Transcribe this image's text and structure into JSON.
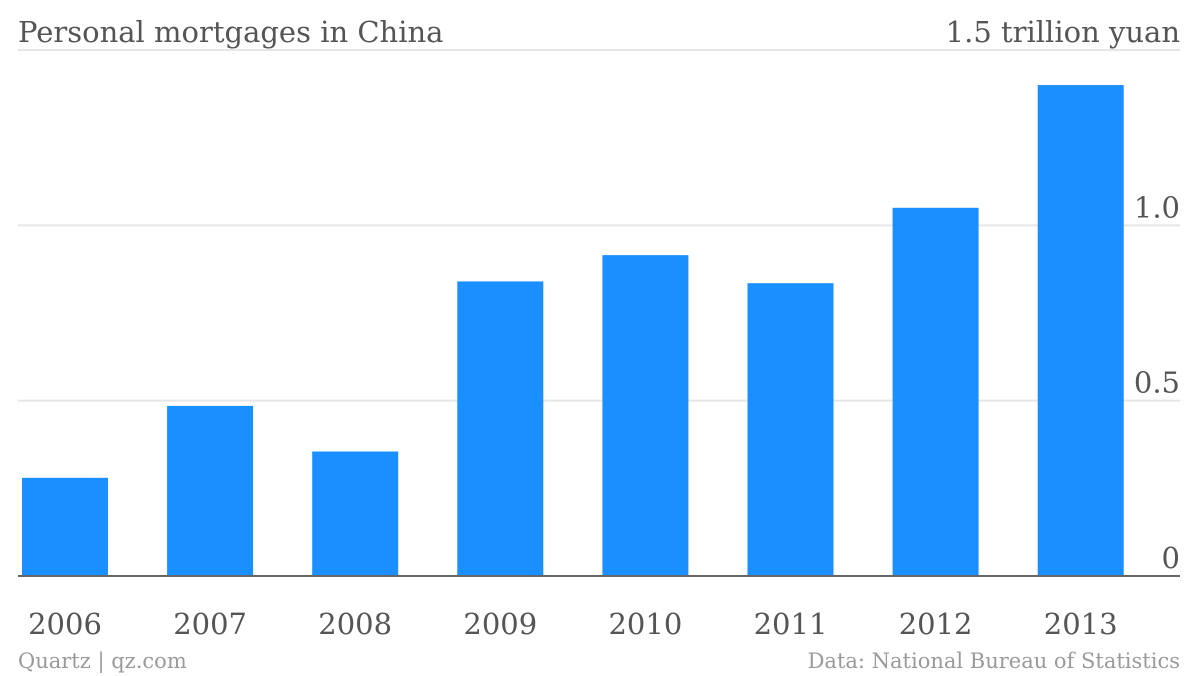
{
  "chart_data": {
    "type": "bar",
    "title": "Personal mortgages in China",
    "unit_label": "1.5 trillion yuan",
    "categories": [
      "2006",
      "2007",
      "2008",
      "2009",
      "2010",
      "2011",
      "2012",
      "2013"
    ],
    "values": [
      0.28,
      0.485,
      0.355,
      0.84,
      0.915,
      0.835,
      1.05,
      1.4
    ],
    "ylim": [
      0,
      1.5
    ],
    "yticks": [
      0,
      0.5,
      1.0,
      1.5
    ],
    "ytick_labels": [
      "0",
      "0.5",
      "1.0",
      "1.5"
    ],
    "grid": true,
    "y_axis_side": "right",
    "bar_color": "#1a8fff"
  },
  "footer": {
    "source_left": "Quartz | qz.com",
    "source_right": "Data: National Bureau of Statistics"
  }
}
